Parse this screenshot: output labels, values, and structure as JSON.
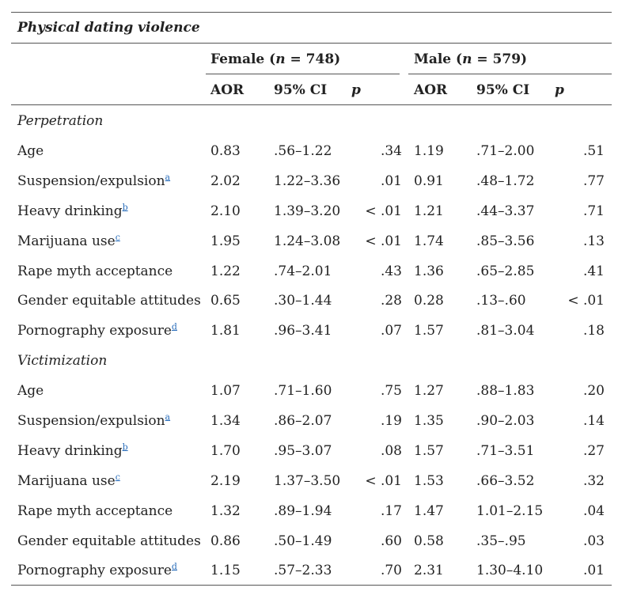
{
  "table": {
    "title": "Physical dating violence",
    "groups": [
      {
        "label": "Female",
        "n_label": "n",
        "n_value": " = 748"
      },
      {
        "label": "Male",
        "n_label": "n",
        "n_value": " = 579"
      }
    ],
    "columns": {
      "aor": "AOR",
      "ci": "95% CI",
      "p": "p"
    },
    "sections": [
      {
        "label": "Perpetration",
        "rows": [
          {
            "label": "Age",
            "fn": "",
            "f": [
              "0.83",
              ".56–1.22",
              ".34"
            ],
            "m": [
              "1.19",
              ".71–2.00",
              ".51"
            ]
          },
          {
            "label": "Suspension/expulsion",
            "fn": "a",
            "f": [
              "2.02",
              "1.22–3.36",
              ".01"
            ],
            "m": [
              "0.91",
              ".48–1.72",
              ".77"
            ]
          },
          {
            "label": "Heavy drinking",
            "fn": "b",
            "f": [
              "2.10",
              "1.39–3.20",
              "< .01"
            ],
            "m": [
              "1.21",
              ".44–3.37",
              ".71"
            ]
          },
          {
            "label": "Marijuana use",
            "fn": "c",
            "f": [
              "1.95",
              "1.24–3.08",
              "< .01"
            ],
            "m": [
              "1.74",
              ".85–3.56",
              ".13"
            ]
          },
          {
            "label": "Rape myth acceptance",
            "fn": "",
            "f": [
              "1.22",
              ".74–2.01",
              ".43"
            ],
            "m": [
              "1.36",
              ".65–2.85",
              ".41"
            ]
          },
          {
            "label": "Gender equitable attitudes",
            "fn": "",
            "f": [
              "0.65",
              ".30–1.44",
              ".28"
            ],
            "m": [
              "0.28",
              ".13–.60",
              "< .01"
            ]
          },
          {
            "label": "Pornography exposure",
            "fn": "d",
            "f": [
              "1.81",
              ".96–3.41",
              ".07"
            ],
            "m": [
              "1.57",
              ".81–3.04",
              ".18"
            ]
          }
        ]
      },
      {
        "label": "Victimization",
        "rows": [
          {
            "label": "Age",
            "fn": "",
            "f": [
              "1.07",
              ".71–1.60",
              ".75"
            ],
            "m": [
              "1.27",
              ".88–1.83",
              ".20"
            ]
          },
          {
            "label": "Suspension/expulsion",
            "fn": "a",
            "f": [
              "1.34",
              ".86–2.07",
              ".19"
            ],
            "m": [
              "1.35",
              ".90–2.03",
              ".14"
            ]
          },
          {
            "label": "Heavy drinking",
            "fn": "b",
            "f": [
              "1.70",
              ".95–3.07",
              ".08"
            ],
            "m": [
              "1.57",
              ".71–3.51",
              ".27"
            ]
          },
          {
            "label": "Marijuana use",
            "fn": "c",
            "f": [
              "2.19",
              "1.37–3.50",
              "< .01"
            ],
            "m": [
              "1.53",
              ".66–3.52",
              ".32"
            ]
          },
          {
            "label": "Rape myth acceptance",
            "fn": "",
            "f": [
              "1.32",
              ".89–1.94",
              ".17"
            ],
            "m": [
              "1.47",
              "1.01–2.15",
              ".04"
            ]
          },
          {
            "label": "Gender equitable attitudes",
            "fn": "",
            "f": [
              "0.86",
              ".50–1.49",
              ".60"
            ],
            "m": [
              "0.58",
              ".35–.95",
              ".03"
            ]
          },
          {
            "label": "Pornography exposure",
            "fn": "d",
            "f": [
              "1.15",
              ".57–2.33",
              ".70"
            ],
            "m": [
              "2.31",
              "1.30–4.10",
              ".01"
            ]
          }
        ]
      }
    ]
  }
}
